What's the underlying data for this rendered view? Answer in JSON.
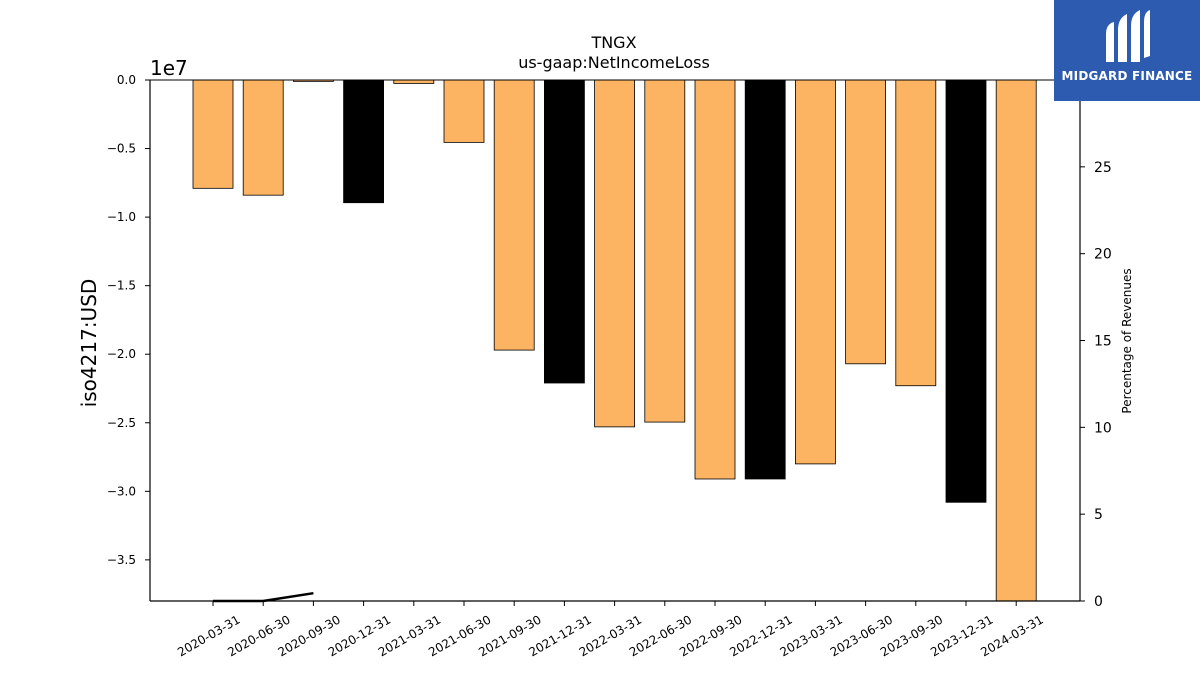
{
  "chart_data": {
    "type": "bar",
    "title": "TNGX",
    "subtitle": "us-gaap:NetIncomeLoss",
    "ylabel": "iso4217:USD",
    "y_offset_label": "1e7",
    "y2label": "Percentage of Revenues",
    "categories": [
      "2020-03-31",
      "2020-06-30",
      "2020-09-30",
      "2020-12-31",
      "2021-03-31",
      "2021-06-30",
      "2021-09-30",
      "2021-12-31",
      "2022-03-31",
      "2022-06-30",
      "2022-09-30",
      "2022-12-31",
      "2023-03-31",
      "2023-06-30",
      "2023-09-30",
      "2023-12-31",
      "2024-03-31"
    ],
    "values": [
      -7900000,
      -8400000,
      -100000,
      -8950000,
      -250000,
      -4550000,
      -19700000,
      -22100000,
      -25300000,
      -24950000,
      -29100000,
      -29100000,
      -28000000,
      -20700000,
      -22300000,
      -30800000,
      -38000000
    ],
    "bar_colors": [
      "#fdb462",
      "#fdb462",
      "#fdb462",
      "#000000",
      "#fdb462",
      "#fdb462",
      "#fdb462",
      "#000000",
      "#fdb462",
      "#fdb462",
      "#fdb462",
      "#000000",
      "#fdb462",
      "#fdb462",
      "#fdb462",
      "#000000",
      "#fdb462"
    ],
    "ylim": [
      -38000000,
      0
    ],
    "yticks": [
      0,
      -5000000,
      -10000000,
      -15000000,
      -20000000,
      -25000000,
      -30000000,
      -35000000
    ],
    "ytick_labels": [
      "0.0",
      "−0.5",
      "−1.0",
      "−1.5",
      "−2.0",
      "−2.5",
      "−3.0",
      "−3.5"
    ],
    "y2lim": [
      0,
      30
    ],
    "y2ticks": [
      0,
      5,
      10,
      15,
      20,
      25
    ],
    "y2tick_labels": [
      "0",
      "5",
      "10",
      "15",
      "20",
      "25"
    ],
    "percentage_line": {
      "categories": [
        "2020-03-31",
        "2020-06-30",
        "2020-09-30"
      ],
      "values": [
        0,
        0,
        0.45
      ]
    },
    "grid": false,
    "legend": "none"
  },
  "logo": {
    "text": "MIDGARD FINANCE",
    "background": "#2d5bb0"
  }
}
